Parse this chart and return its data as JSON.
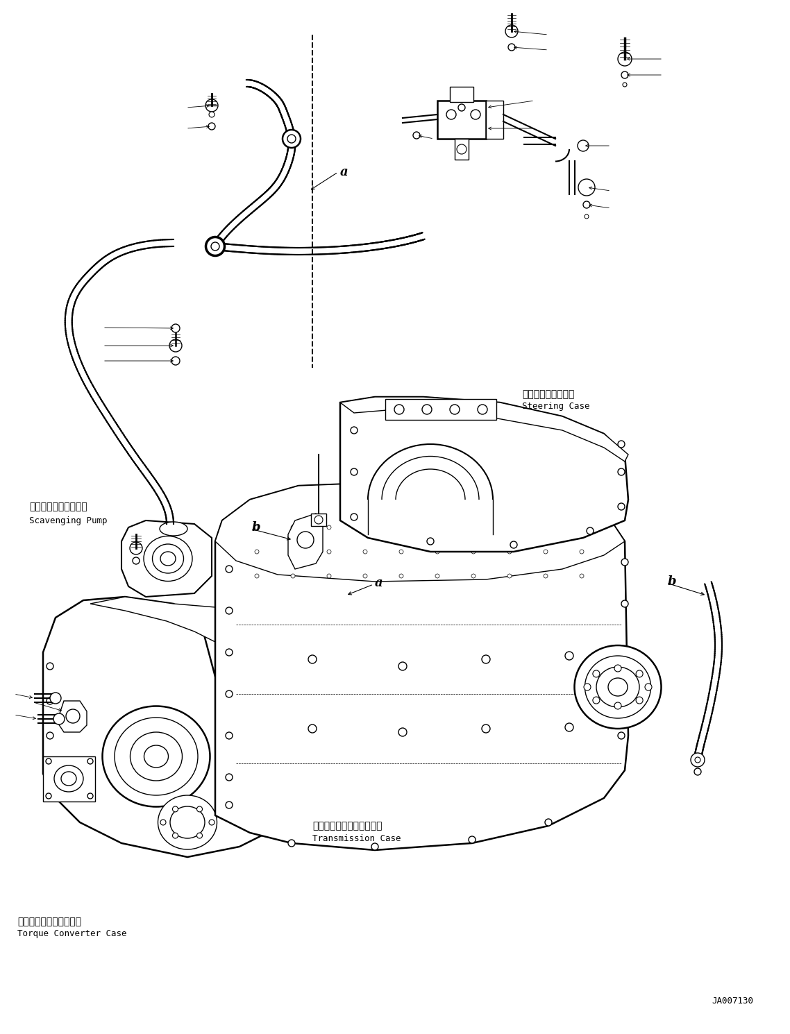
{
  "figure_width": 11.38,
  "figure_height": 14.9,
  "dpi": 100,
  "bg_color": "#ffffff",
  "labels": {
    "scavenging_pump_ja": "スカベンジングポンプ",
    "scavenging_pump_en": "Scavenging Pump",
    "steering_case_ja": "ステアリングケース",
    "steering_case_en": "Steering Case",
    "transmission_case_ja": "トランスミッションケース",
    "transmission_case_en": "Transmission Case",
    "torque_converter_ja": "トルクコンバータケース",
    "torque_converter_en": "Torque Converter Case",
    "part_id": "JA007130"
  },
  "lc": "#000000",
  "lw": 1.0,
  "tlw": 0.6,
  "thkw": 1.8
}
